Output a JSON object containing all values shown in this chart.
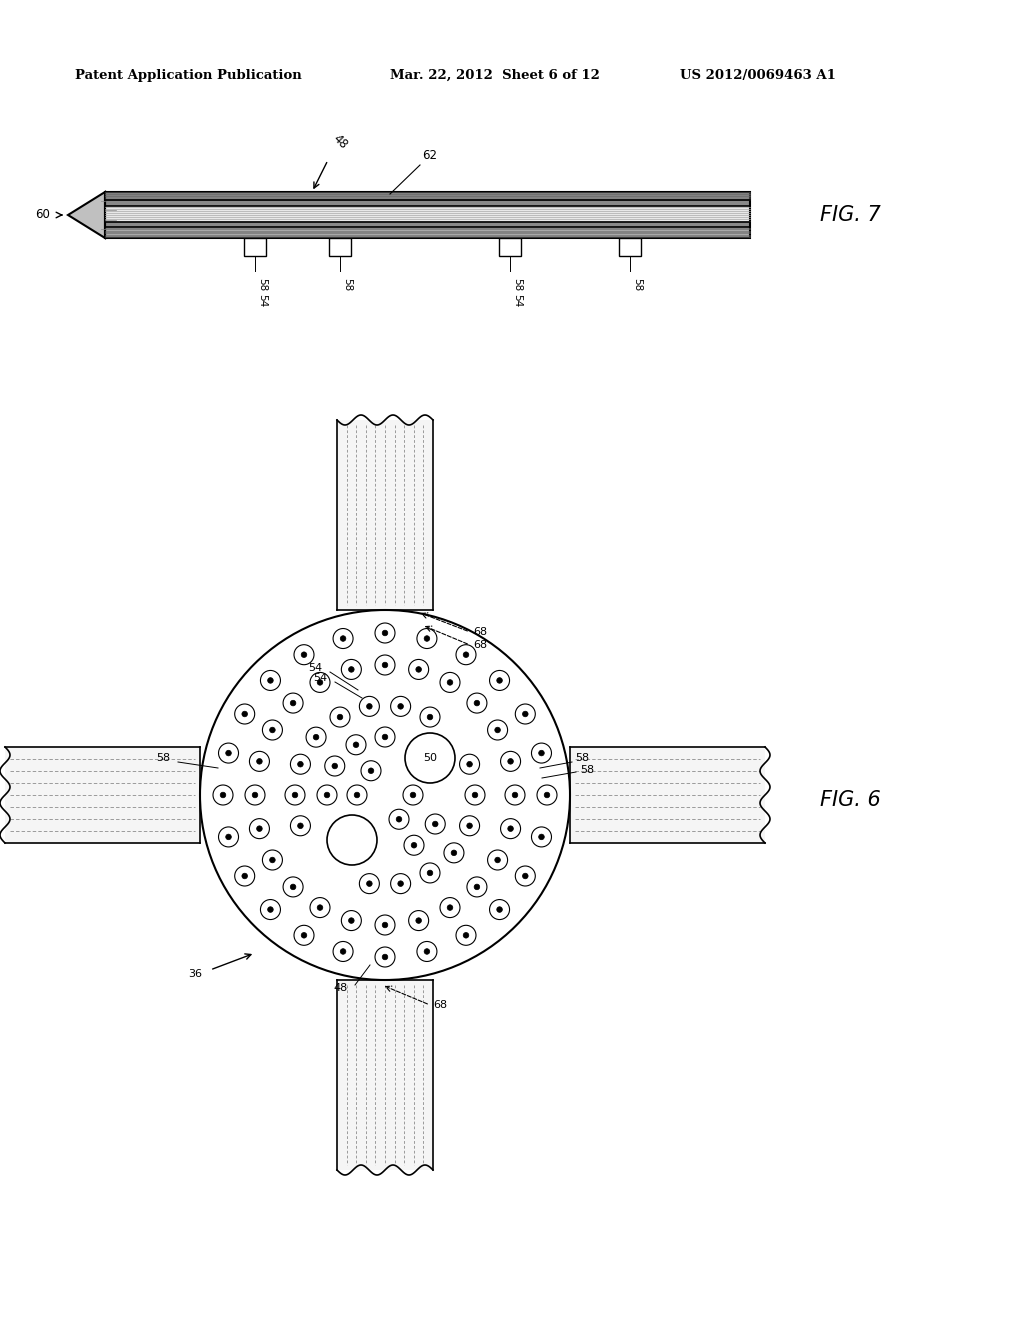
{
  "header_left": "Patent Application Publication",
  "header_mid": "Mar. 22, 2012  Sheet 6 of 12",
  "header_right": "US 2012/0069463 A1",
  "fig7_label": "FIG. 7",
  "fig6_label": "FIG. 6",
  "bg_color": "#ffffff"
}
